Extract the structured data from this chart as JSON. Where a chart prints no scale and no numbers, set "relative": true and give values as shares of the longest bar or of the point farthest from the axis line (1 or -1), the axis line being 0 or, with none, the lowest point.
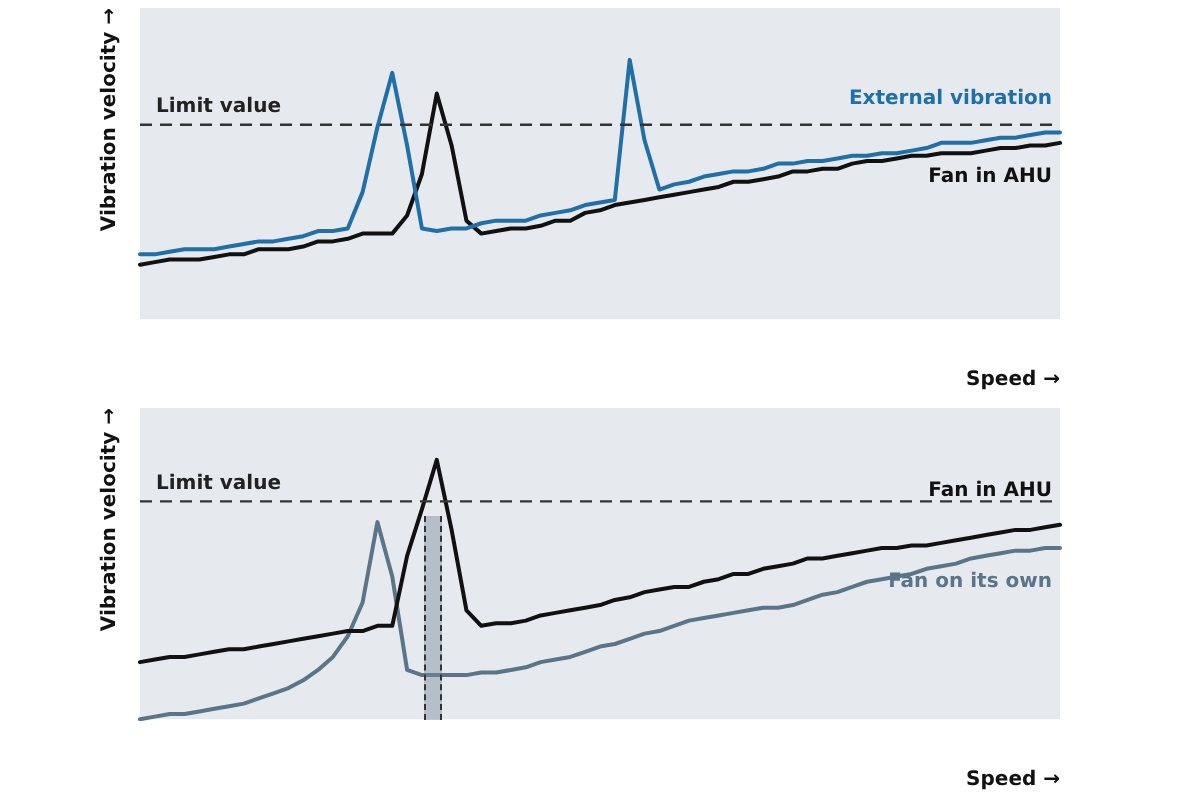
{
  "chart_data": [
    {
      "type": "line",
      "relative": true,
      "ylabel": "Vibration velocity →",
      "xlabel": "Speed →",
      "legend": false,
      "grid": false,
      "marker": "none",
      "line_style": "solid",
      "categories": [
        null,
        null,
        null,
        null,
        null,
        null,
        null,
        null,
        null,
        null,
        null,
        null,
        null,
        null,
        null,
        null,
        null,
        null,
        null,
        null,
        null,
        null,
        null,
        null,
        null,
        null,
        null,
        null,
        null,
        null,
        null,
        null,
        null,
        null,
        null,
        null,
        null,
        null,
        null,
        null,
        null,
        null,
        null,
        null,
        null,
        null,
        null,
        null,
        null,
        null,
        null,
        null,
        null,
        null,
        null,
        null,
        null,
        null,
        null,
        null,
        null,
        null,
        null
      ],
      "series": [
        {
          "name": "External vibration",
          "color": "#1f6fa8",
          "values": [
            0.25,
            0.25,
            0.26,
            0.27,
            0.27,
            0.27,
            0.28,
            0.29,
            0.3,
            0.3,
            0.31,
            0.32,
            0.34,
            0.34,
            0.35,
            0.49,
            0.74,
            0.95,
            0.67,
            0.35,
            0.34,
            0.35,
            0.35,
            0.37,
            0.38,
            0.38,
            0.38,
            0.4,
            0.41,
            0.42,
            0.44,
            0.45,
            0.46,
            1,
            0.69,
            0.5,
            0.52,
            0.53,
            0.55,
            0.56,
            0.57,
            0.57,
            0.58,
            0.6,
            0.6,
            0.61,
            0.61,
            0.62,
            0.63,
            0.63,
            0.64,
            0.64,
            0.65,
            0.66,
            0.68,
            0.68,
            0.68,
            0.69,
            0.7,
            0.7,
            0.71,
            0.72,
            0.72
          ]
        },
        {
          "name": "Fan in AHU",
          "color": "#111111",
          "values": [
            0.21,
            0.22,
            0.23,
            0.23,
            0.23,
            0.24,
            0.25,
            0.25,
            0.27,
            0.27,
            0.27,
            0.28,
            0.3,
            0.3,
            0.31,
            0.33,
            0.33,
            0.33,
            0.4,
            0.56,
            0.87,
            0.67,
            0.38,
            0.33,
            0.34,
            0.35,
            0.35,
            0.36,
            0.38,
            0.38,
            0.41,
            0.42,
            0.44,
            0.45,
            0.46,
            0.47,
            0.48,
            0.49,
            0.5,
            0.51,
            0.53,
            0.53,
            0.54,
            0.55,
            0.57,
            0.57,
            0.58,
            0.58,
            0.6,
            0.61,
            0.61,
            0.62,
            0.63,
            0.63,
            0.64,
            0.64,
            0.64,
            0.65,
            0.66,
            0.66,
            0.67,
            0.67,
            0.68
          ]
        }
      ],
      "ref_lines": [
        {
          "axis": "y",
          "value": 0.75,
          "label": "Limit value",
          "color": "#333333",
          "line_style": "dashed"
        }
      ]
    },
    {
      "type": "line",
      "relative": true,
      "ylabel": "Vibration velocity →",
      "xlabel": "Speed →",
      "legend": false,
      "grid": false,
      "marker": "none",
      "line_style": "solid",
      "categories": [
        null,
        null,
        null,
        null,
        null,
        null,
        null,
        null,
        null,
        null,
        null,
        null,
        null,
        null,
        null,
        null,
        null,
        null,
        null,
        null,
        null,
        null,
        null,
        null,
        null,
        null,
        null,
        null,
        null,
        null,
        null,
        null,
        null,
        null,
        null,
        null,
        null,
        null,
        null,
        null,
        null,
        null,
        null,
        null,
        null,
        null,
        null,
        null,
        null,
        null,
        null,
        null,
        null,
        null,
        null,
        null,
        null,
        null,
        null,
        null,
        null,
        null,
        null
      ],
      "series": [
        {
          "name": "Fan in AHU",
          "color": "#111111",
          "values": [
            0.22,
            0.23,
            0.24,
            0.24,
            0.25,
            0.26,
            0.27,
            0.27,
            0.28,
            0.29,
            0.3,
            0.31,
            0.32,
            0.33,
            0.34,
            0.34,
            0.36,
            0.36,
            0.63,
            0.81,
            1,
            0.73,
            0.42,
            0.36,
            0.37,
            0.37,
            0.38,
            0.4,
            0.41,
            0.42,
            0.43,
            0.44,
            0.46,
            0.47,
            0.49,
            0.5,
            0.51,
            0.51,
            0.53,
            0.54,
            0.56,
            0.56,
            0.58,
            0.59,
            0.6,
            0.62,
            0.62,
            0.63,
            0.64,
            0.65,
            0.66,
            0.66,
            0.67,
            0.67,
            0.68,
            0.69,
            0.7,
            0.71,
            0.72,
            0.73,
            0.73,
            0.74,
            0.75
          ]
        },
        {
          "name": "Fan on its own",
          "color": "#5a7489",
          "values": [
            0,
            0.01,
            0.02,
            0.02,
            0.03,
            0.04,
            0.05,
            0.06,
            0.08,
            0.1,
            0.12,
            0.15,
            0.19,
            0.24,
            0.32,
            0.45,
            0.76,
            0.55,
            0.19,
            0.17,
            0.17,
            0.17,
            0.17,
            0.18,
            0.18,
            0.19,
            0.2,
            0.22,
            0.23,
            0.24,
            0.26,
            0.28,
            0.29,
            0.31,
            0.33,
            0.34,
            0.36,
            0.38,
            0.39,
            0.4,
            0.41,
            0.42,
            0.43,
            0.43,
            0.44,
            0.46,
            0.48,
            0.49,
            0.51,
            0.53,
            0.54,
            0.55,
            0.56,
            0.58,
            0.59,
            0.6,
            0.62,
            0.63,
            0.64,
            0.65,
            0.65,
            0.66,
            0.66
          ]
        }
      ],
      "ref_lines": [
        {
          "axis": "y",
          "value": 0.84,
          "label": "Limit value",
          "color": "#333333",
          "line_style": "dashed"
        }
      ]
    }
  ]
}
